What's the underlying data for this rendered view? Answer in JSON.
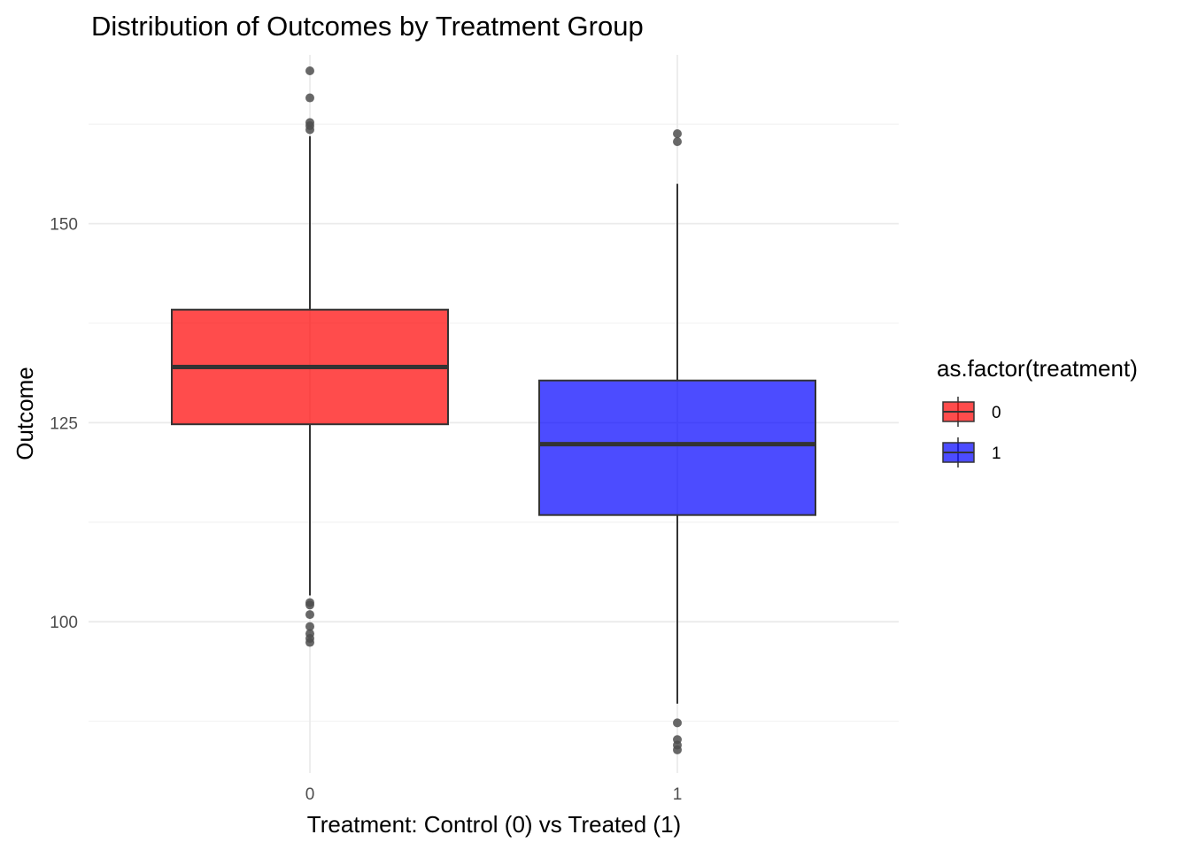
{
  "chart_data": {
    "type": "boxplot",
    "title": "Distribution of Outcomes by Treatment Group",
    "xlabel": "Treatment: Control (0) vs Treated (1)",
    "ylabel": "Outcome",
    "categories": [
      "0",
      "1"
    ],
    "y_ticks": [
      100,
      125,
      150
    ],
    "y_tick_labels": [
      "100",
      "125",
      "150"
    ],
    "ylim": [
      81.0,
      171.2
    ],
    "grid": true,
    "legend": {
      "title": "as.factor(treatment)",
      "position": "right",
      "entries": [
        "0",
        "1"
      ]
    },
    "colors": {
      "0": "#ff0000",
      "1": "#0000ff",
      "box_alpha": 0.7,
      "outline": "#333333",
      "outlier": "#4d4d4d"
    },
    "series": [
      {
        "category": "0",
        "whisker_low": 103.3,
        "q1": 124.8,
        "median": 132.0,
        "q3": 139.2,
        "whisker_high": 161.0,
        "outliers": [
          169.2,
          165.8,
          162.7,
          162.3,
          161.8,
          102.4,
          102.1,
          100.9,
          99.4,
          98.5,
          97.9,
          97.4
        ]
      },
      {
        "category": "1",
        "whisker_low": 89.7,
        "q1": 113.4,
        "median": 122.3,
        "q3": 130.3,
        "whisker_high": 155.0,
        "outliers": [
          161.3,
          160.3,
          87.3,
          85.2,
          84.5,
          83.9
        ]
      }
    ]
  }
}
